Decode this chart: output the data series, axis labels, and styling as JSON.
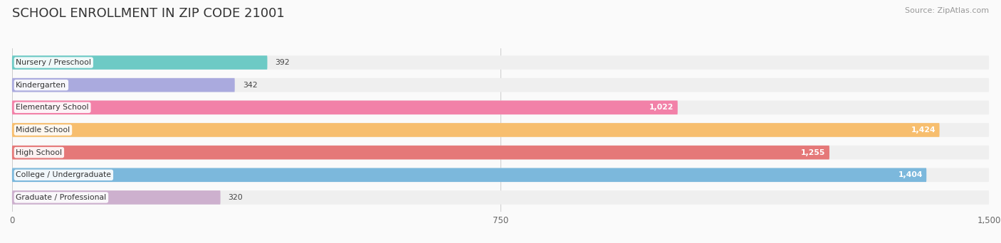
{
  "title": "SCHOOL ENROLLMENT IN ZIP CODE 21001",
  "source": "Source: ZipAtlas.com",
  "categories": [
    "Nursery / Preschool",
    "Kindergarten",
    "Elementary School",
    "Middle School",
    "High School",
    "College / Undergraduate",
    "Graduate / Professional"
  ],
  "values": [
    392,
    342,
    1022,
    1424,
    1255,
    1404,
    320
  ],
  "bar_colors": [
    "#6DCAC5",
    "#AAAADE",
    "#F281A8",
    "#F7BE6E",
    "#E57878",
    "#7CB8DC",
    "#CDB0CE"
  ],
  "bar_bg_color": "#EFEFEF",
  "xlim": [
    0,
    1500
  ],
  "xticks": [
    0,
    750,
    1500
  ],
  "label_fontsize": 7.8,
  "value_fontsize": 7.8,
  "title_fontsize": 13,
  "source_fontsize": 8,
  "background_color": "#FAFAFA",
  "large_threshold": 600
}
